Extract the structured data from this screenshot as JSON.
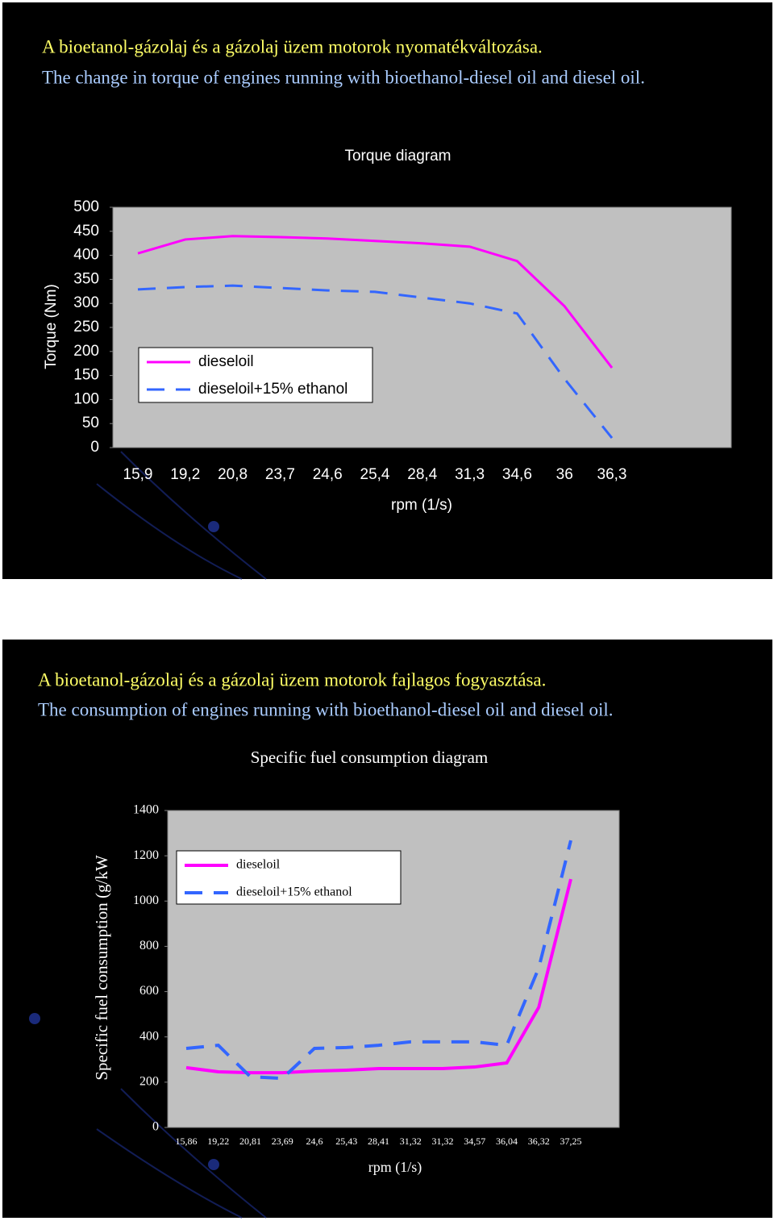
{
  "headings": [
    [
      "A bioetanol-gázolaj és a gázolaj üzem   motorok nyomatékváltozása.",
      "The change in torque of engines running with bioethanol-diesel oil and diesel oil."
    ],
    [
      "A bioetanol-gázolaj és a gázolaj üzem   motorok fajlagos fogyasztása.",
      "The consumption of engines running with bioethanol-diesel oil and diesel oil."
    ]
  ],
  "chart_data": [
    {
      "type": "line",
      "title": "Torque diagram",
      "x_label": "rpm (1/s)",
      "y_label": "Torque (Nm)",
      "categories": [
        "15,9",
        "19,2",
        "20,8",
        "23,7",
        "24,6",
        "25,4",
        "28,4",
        "31,3",
        "34,6",
        "36",
        "36,3"
      ],
      "series": [
        {
          "name": "dieseloil",
          "color": "#ff00ff",
          "dash": false,
          "values": [
            404,
            433,
            440,
            438,
            435,
            430,
            425,
            418,
            388,
            294,
            166
          ]
        },
        {
          "name": "dieseloil+15% ethanol",
          "color": "#3366ff",
          "dash": true,
          "values": [
            329,
            334,
            337,
            332,
            327,
            324,
            312,
            300,
            279,
            143,
            20
          ]
        }
      ],
      "ylim": [
        0,
        500
      ],
      "yticks": [
        0,
        50,
        100,
        150,
        200,
        250,
        300,
        350,
        400,
        450,
        500
      ],
      "grid": false
    },
    {
      "type": "line",
      "title": "Specific fuel consumption diagram",
      "x_label": "rpm (1/s)",
      "y_label": "Specific fuel consumption (g/kW",
      "categories": [
        "15,86",
        "19,22",
        "20,81",
        "23,69",
        "24,6",
        "25,43",
        "28,41",
        "31,32",
        "31,32",
        "34,57",
        "36,04",
        "36,32",
        "37,25"
      ],
      "series": [
        {
          "name": "dieseloil",
          "color": "#ff00ff",
          "dash": false,
          "values": [
            264,
            246,
            242,
            242,
            249,
            253,
            260,
            260,
            260,
            267,
            285,
            531,
            1097
          ]
        },
        {
          "name": "dieseloil+15% ethanol",
          "color": "#3366ff",
          "dash": true,
          "values": [
            349,
            363,
            224,
            217,
            349,
            353,
            363,
            378,
            378,
            378,
            363,
            705,
            1268
          ]
        }
      ],
      "ylim": [
        0,
        1400
      ],
      "yticks": [
        0,
        200,
        400,
        600,
        800,
        1000,
        1200,
        1400
      ],
      "grid": false
    }
  ]
}
